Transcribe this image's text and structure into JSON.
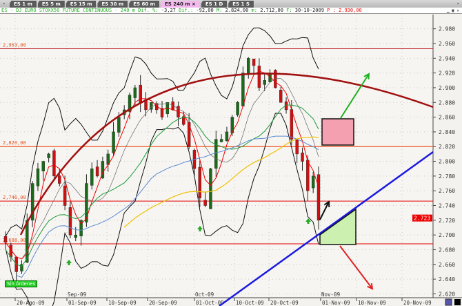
{
  "tabs": [
    "ES 1 m",
    "ES 5 m",
    "ES 15 m",
    "ES 30 m",
    "ES 60 m",
    "ES 240 m",
    "ES 1 D",
    "ES 1 S"
  ],
  "active_tab": 5,
  "info": {
    "symbol": "ES - DJ EURO STOXX50 FUTURE CONTINUOUS - ",
    "period": "240 m",
    "dif_pct_label": "Dif. %:",
    "dif_pct": "-3,27",
    "dif_label": "Dif.:",
    "dif": "-92,00",
    "max_label": "M:",
    "max": "2.824,00",
    "min_label": "m:",
    "min": "2.712,00",
    "date_label": "F:",
    "date": "30-10-2009",
    "price_label": "P :",
    "price": "2.930,00"
  },
  "orders_badge": "Sin órdenes",
  "current_price": "2.723",
  "chart_data": {
    "type": "candlestick",
    "y_ticks": [
      "2.980",
      "2.960",
      "2.940",
      "2.920",
      "2.900",
      "2.880",
      "2.860",
      "2.840",
      "2.820",
      "2.800",
      "2.780",
      "2.760",
      "2.740",
      "2.720",
      "2.700",
      "2.680",
      "2.660",
      "2.640",
      "2.620"
    ],
    "ylim": [
      2620,
      2980
    ],
    "x_ticks": [
      "20-Ago-09",
      "01-Sep-09",
      "10-Sep-09",
      "20-Sep-09",
      "01-Oct-09",
      "10-Oct-09",
      "20-Oct-09",
      "01-Nov-09",
      "10-Nov-09",
      "20-Nov-09"
    ],
    "month_labels": [
      "Sep-09",
      "Oct-09",
      "Nov-09"
    ],
    "levels": [
      {
        "value": 2953,
        "label": "2,953,00"
      },
      {
        "value": 2820,
        "label": "2,820,00"
      },
      {
        "value": 2746,
        "label": "2,746,00"
      },
      {
        "value": 2688,
        "label": "2,688,00"
      }
    ],
    "closes": [
      2690,
      2670,
      2650,
      2660,
      2720,
      2770,
      2790,
      2800,
      2810,
      2780,
      2770,
      2740,
      2700,
      2700,
      2720,
      2770,
      2790,
      2780,
      2800,
      2810,
      2840,
      2860,
      2870,
      2890,
      2900,
      2880,
      2870,
      2880,
      2870,
      2860,
      2880,
      2870,
      2860,
      2850,
      2820,
      2790,
      2750,
      2740,
      2790,
      2830,
      2830,
      2840,
      2860,
      2880,
      2920,
      2940,
      2930,
      2900,
      2910,
      2920,
      2900,
      2880,
      2870,
      2830,
      2810,
      2800,
      2760,
      2780,
      2720
    ],
    "colors": {
      "up": "#1a6a1a",
      "down": "#d01010",
      "arc": "#a01010",
      "trend": "#1a1ae0",
      "level": "#e00000",
      "level_strong": "#f07040"
    }
  }
}
